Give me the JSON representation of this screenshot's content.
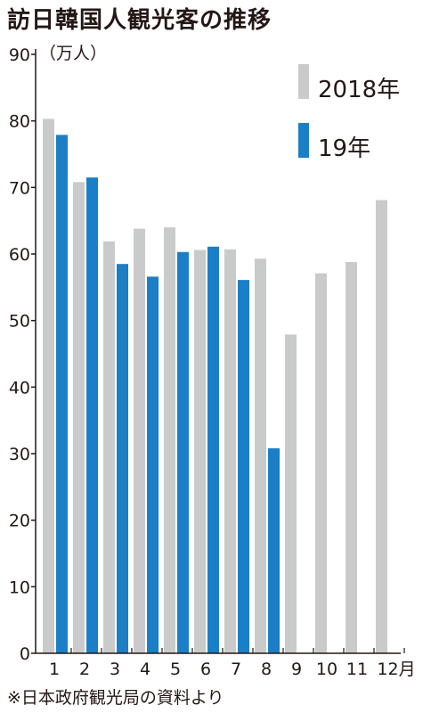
{
  "chart_data": {
    "type": "bar",
    "title": "訪日韓国人観光客の推移",
    "unit_label": "（万人）",
    "categories": [
      "1",
      "2",
      "3",
      "4",
      "5",
      "6",
      "7",
      "8",
      "9",
      "10",
      "11",
      "12月"
    ],
    "series": [
      {
        "name": "2018年",
        "color": "#c9caca",
        "values": [
          80.3,
          70.8,
          61.9,
          63.8,
          64.0,
          60.6,
          60.7,
          59.3,
          47.9,
          57.1,
          58.8,
          68.1
        ]
      },
      {
        "name": "19年",
        "color": "#1b7fc7",
        "values": [
          77.9,
          71.5,
          58.5,
          56.6,
          60.3,
          61.1,
          56.1,
          30.8,
          null,
          null,
          null,
          null
        ]
      }
    ],
    "yticks": [
      "90",
      "80",
      "70",
      "60",
      "50",
      "40",
      "30",
      "20",
      "10",
      "0"
    ],
    "ylim": [
      0,
      90
    ],
    "grid": false,
    "legend_position": "top-right",
    "source": "※日本政府観光局の資料より"
  }
}
